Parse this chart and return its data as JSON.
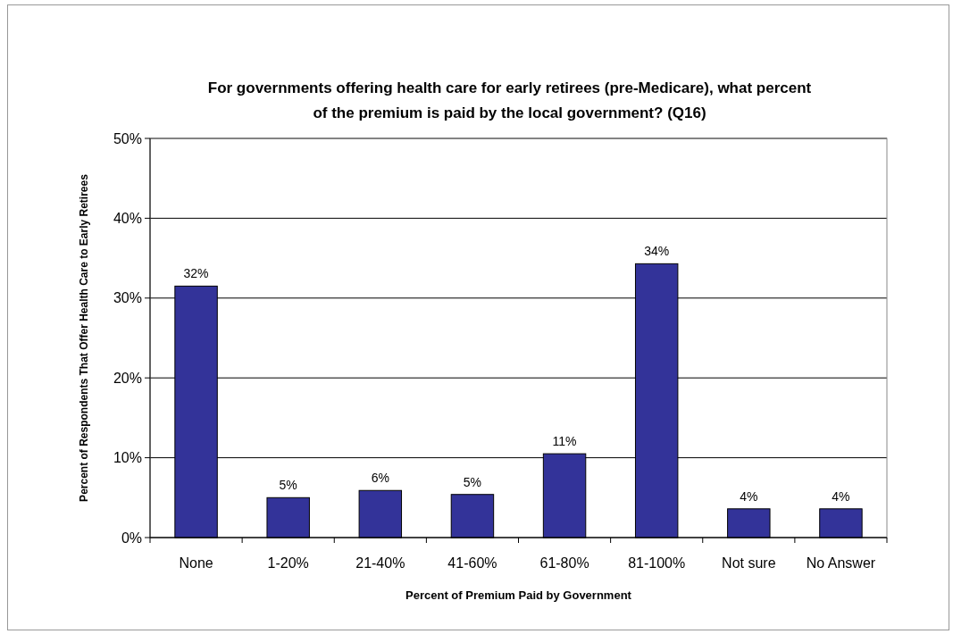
{
  "chart_data": {
    "type": "bar",
    "title": "For governments offering health care for early retirees (pre-Medicare), what percent of the premium is paid by the local government? (Q16)",
    "xlabel": "Percent of Premium Paid by Government",
    "ylabel": "Percent of Respondents That Offer Health Care to Early Retirees",
    "categories": [
      "None",
      "1-20%",
      "21-40%",
      "41-60%",
      "61-80%",
      "81-100%",
      "Not sure",
      "No Answer"
    ],
    "values": [
      31.5,
      5,
      5.9,
      5.4,
      10.5,
      34.3,
      3.6,
      3.6
    ],
    "value_labels": [
      "32%",
      "5%",
      "6%",
      "5%",
      "11%",
      "34%",
      "4%",
      "4%"
    ],
    "color": "#333399",
    "ylim": [
      0,
      50
    ],
    "yticks": [
      {
        "value": 0,
        "label": "0%"
      },
      {
        "value": 10,
        "label": "10%"
      },
      {
        "value": 20,
        "label": "20%"
      },
      {
        "value": 30,
        "label": "30%"
      },
      {
        "value": 40,
        "label": "40%"
      },
      {
        "value": 50,
        "label": "50%"
      }
    ],
    "grid": "y"
  }
}
